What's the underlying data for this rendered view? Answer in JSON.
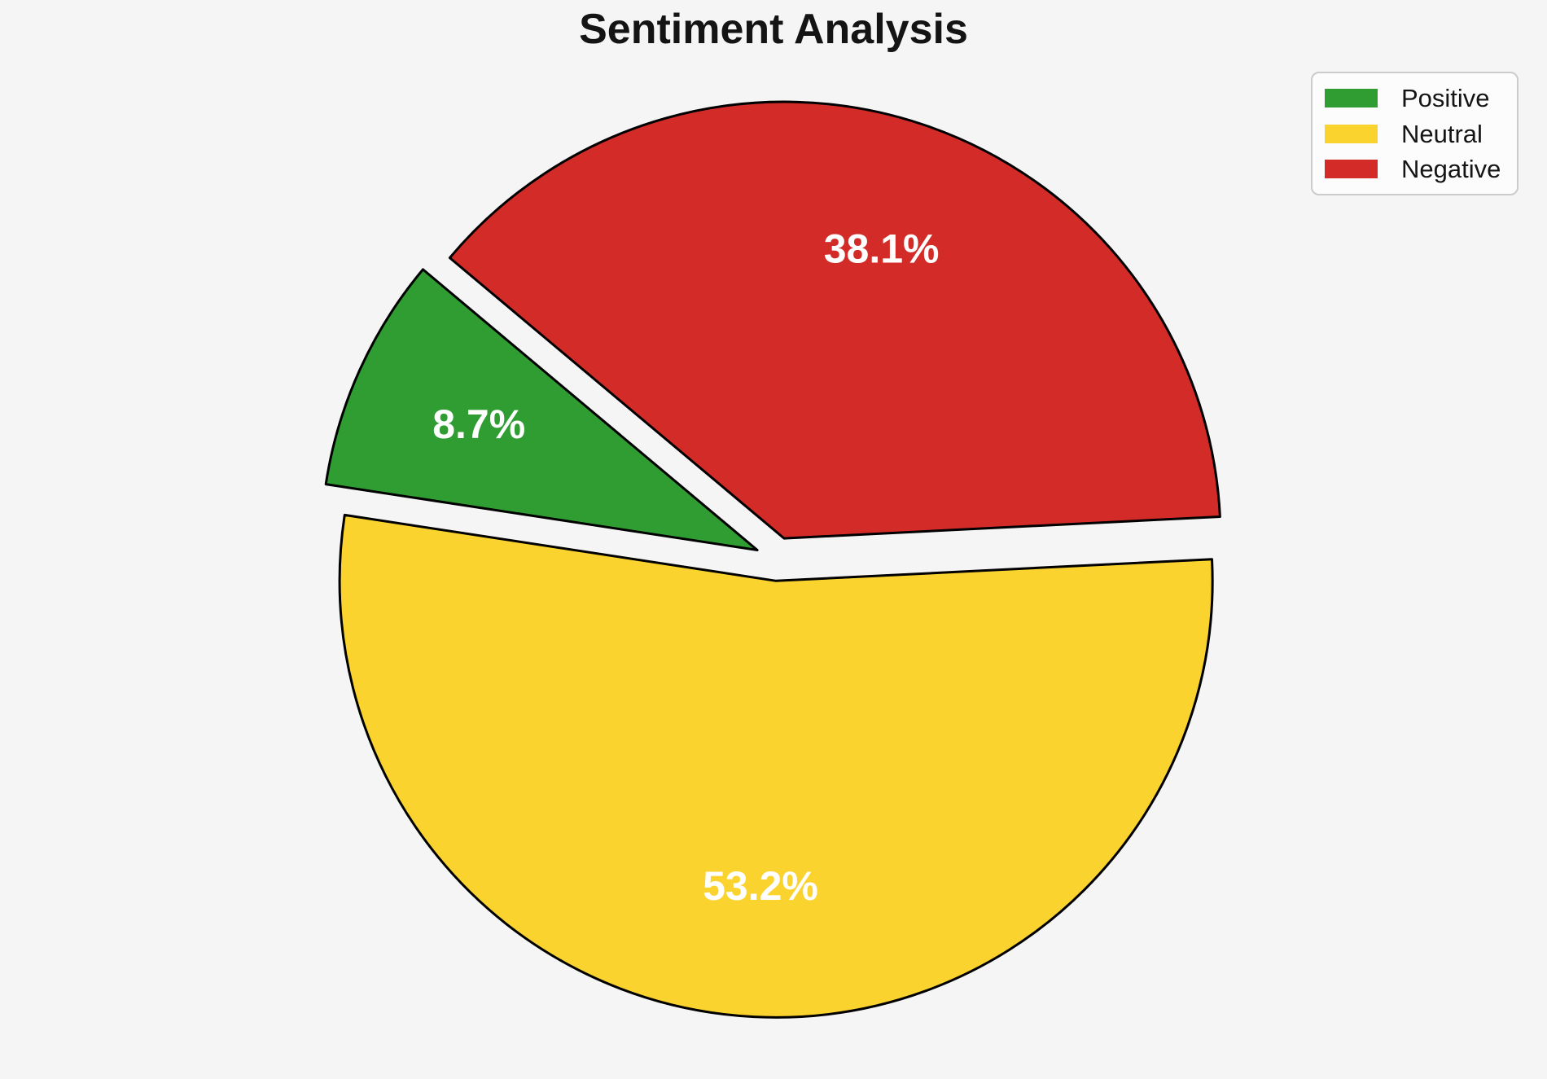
{
  "title": "Sentiment Analysis",
  "chart_data": {
    "type": "pie",
    "title": "Sentiment Analysis",
    "slices": [
      {
        "label": "Positive",
        "value_pct": 8.7,
        "display": "8.7%",
        "color": "#2f9d31"
      },
      {
        "label": "Neutral",
        "value_pct": 53.2,
        "display": "53.2%",
        "color": "#fad32f"
      },
      {
        "label": "Negative",
        "value_pct": 38.1,
        "display": "38.1%",
        "color": "#d32c28"
      }
    ],
    "start_angle_deg": 140,
    "direction": "counterclockwise",
    "explode_fraction": 0.05,
    "pct_label_distance_fraction": 0.7,
    "slice_label_color": "#ffffff",
    "edge_color": "#000000",
    "background_color": "#f5f5f6",
    "legend": {
      "position": "upper-right",
      "entries": [
        "Positive",
        "Neutral",
        "Negative"
      ]
    }
  }
}
